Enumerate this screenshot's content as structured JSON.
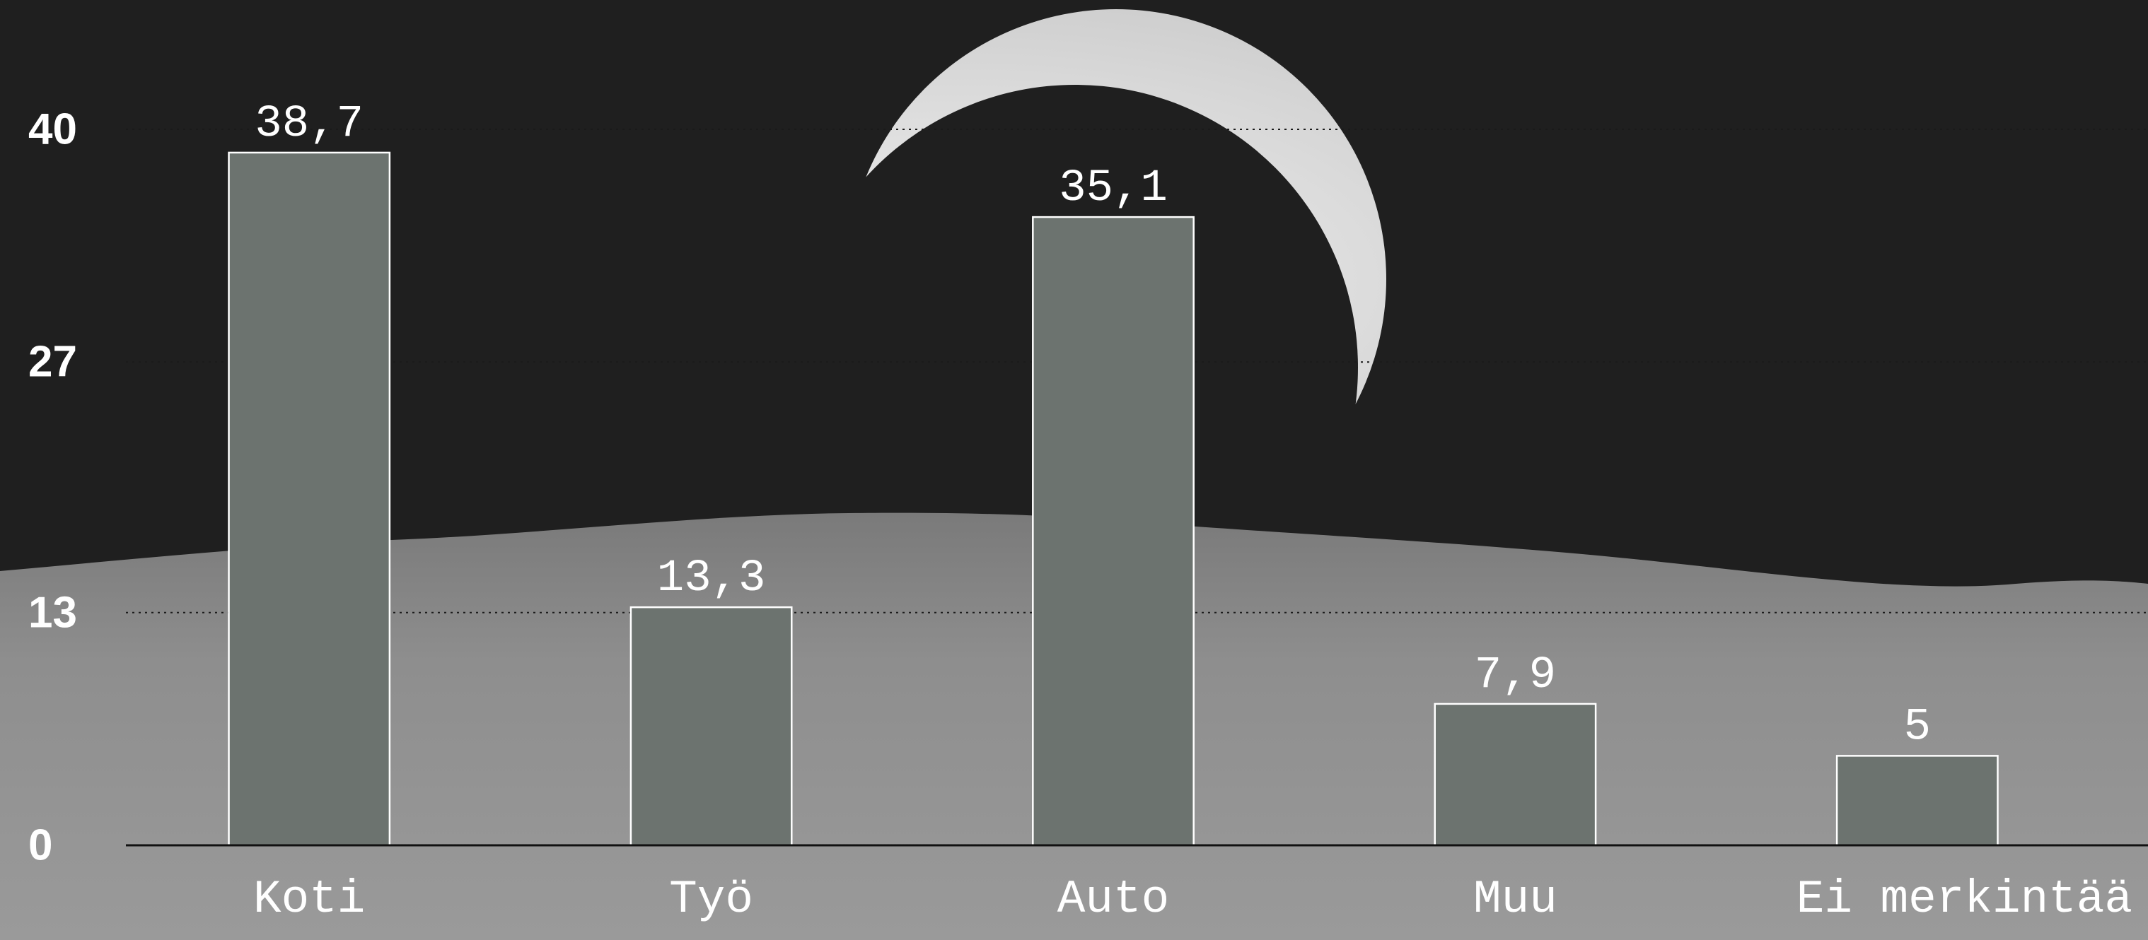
{
  "chart_data": {
    "type": "bar",
    "title": "",
    "xlabel": "",
    "ylabel": "",
    "categories": [
      "Koti",
      "Työ",
      "Auto",
      "Muu",
      "Ei merkintää"
    ],
    "values": [
      38.7,
      13.3,
      35.1,
      7.9,
      5
    ],
    "value_labels": [
      "38,7",
      "13,3",
      "35,1",
      "7,9",
      "5"
    ],
    "yticks": [
      0,
      13,
      27,
      40
    ],
    "ylim": [
      0,
      40
    ],
    "grid": "dotted horizontal",
    "colors": {
      "bar_fill": "#6c736f",
      "bar_stroke": "#ffffff",
      "text": "#ffffff",
      "grid": "#1a1a1a",
      "sky": "#1e1e1e",
      "ground": "#8a8a8a"
    },
    "background": "photo of Earth rising above lunar horizon (grayscale)"
  }
}
